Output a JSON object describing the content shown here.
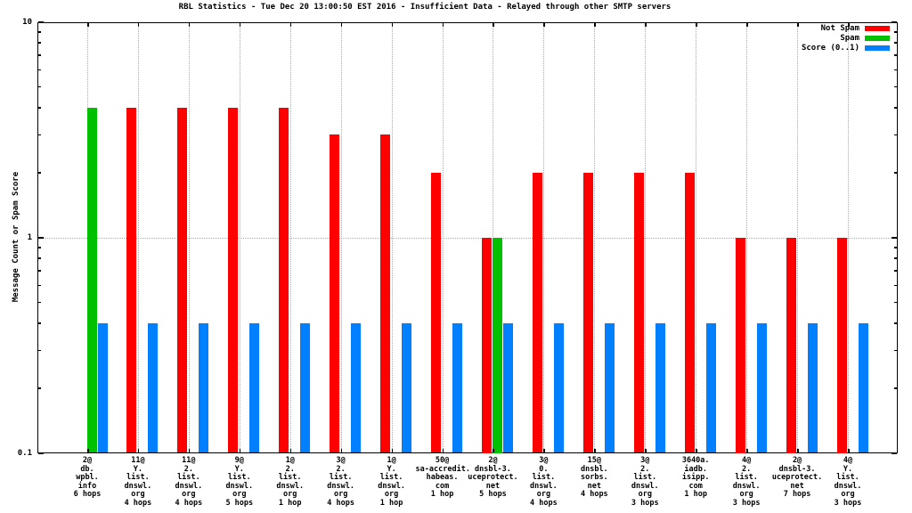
{
  "window": {
    "title": "RBL Statistics - Tue Dec 20 13:00:50 EST 2016 - Insufficient Data - Relayed through other SMTP servers"
  },
  "chart_data": {
    "type": "bar",
    "title": "RBL Statistics - Tue Dec 20 13:00:50 EST 2016 - Insufficient Data - Relayed through other SMTP servers",
    "ylabel": "Message Count or Spam Score",
    "xlabel": "",
    "yscale": "log",
    "ylim": [
      0.1,
      10
    ],
    "grid": true,
    "legend_position": "top-right-inside",
    "yticks": [
      {
        "value": 0.1,
        "label": "0.1"
      },
      {
        "value": 1,
        "label": "1"
      },
      {
        "value": 10,
        "label": "10"
      }
    ],
    "minor_yticks": [
      0.2,
      0.3,
      0.4,
      0.5,
      0.6,
      0.7,
      0.8,
      0.9,
      2,
      3,
      4,
      5,
      6,
      7,
      8,
      9
    ],
    "categories": [
      [
        "2@",
        "db.",
        "wpbl.",
        "info",
        "6 hops"
      ],
      [
        "11@",
        "Y.",
        "list.",
        "dnswl.",
        "org",
        "4 hops"
      ],
      [
        "11@",
        "2.",
        "list.",
        "dnswl.",
        "org",
        "4 hops"
      ],
      [
        "9@",
        "Y.",
        "list.",
        "dnswl.",
        "org",
        "5 hops"
      ],
      [
        "1@",
        "2.",
        "list.",
        "dnswl.",
        "org",
        "1 hop"
      ],
      [
        "3@",
        "2.",
        "list.",
        "dnswl.",
        "org",
        "4 hops"
      ],
      [
        "1@",
        "Y.",
        "list.",
        "dnswl.",
        "org",
        "1 hop"
      ],
      [
        "50@",
        "sa-accredit.",
        "habeas.",
        "com",
        "1 hop"
      ],
      [
        "2@",
        "dnsbl-3.",
        "uceprotect.",
        "net",
        "5 hops"
      ],
      [
        "3@",
        "0.",
        "list.",
        "dnswl.",
        "org",
        "4 hops"
      ],
      [
        "15@",
        "dnsbl.",
        "sorbs.",
        "net",
        "4 hops"
      ],
      [
        "3@",
        "2.",
        "list.",
        "dnswl.",
        "org",
        "3 hops"
      ],
      [
        "3640a.",
        "iadb.",
        "isipp.",
        "com",
        "1 hop"
      ],
      [
        "4@",
        "2.",
        "list.",
        "dnswl.",
        "org",
        "3 hops"
      ],
      [
        "2@",
        "dnsbl-3.",
        "uceprotect.",
        "net",
        "7 hops"
      ],
      [
        "4@",
        "Y.",
        "list.",
        "dnswl.",
        "org",
        "3 hops"
      ]
    ],
    "series": [
      {
        "name": "Not Spam",
        "color": "#ff0000",
        "values": [
          null,
          4,
          4,
          4,
          4,
          3,
          3,
          2,
          1,
          2,
          2,
          2,
          2,
          1,
          1,
          1
        ]
      },
      {
        "name": "Spam",
        "color": "#00c000",
        "values": [
          4,
          null,
          null,
          null,
          null,
          null,
          null,
          null,
          1,
          null,
          null,
          null,
          null,
          null,
          null,
          null
        ]
      },
      {
        "name": "Score (0..1)",
        "color": "#0080ff",
        "values": [
          0.4,
          0.4,
          0.4,
          0.4,
          0.4,
          0.4,
          0.4,
          0.4,
          0.4,
          0.4,
          0.4,
          0.4,
          0.4,
          0.4,
          0.4,
          0.4
        ]
      }
    ]
  }
}
